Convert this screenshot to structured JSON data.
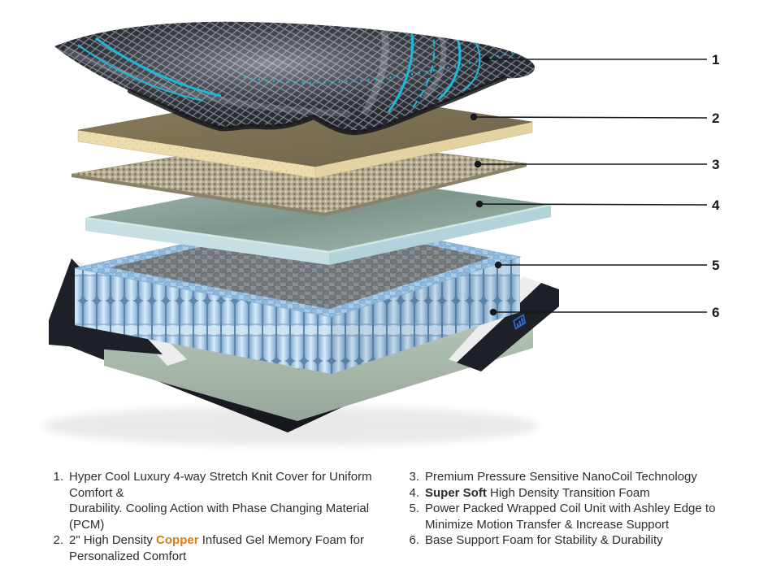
{
  "callouts": [
    {
      "label": "1",
      "target": "knit-cover"
    },
    {
      "label": "2",
      "target": "memory-foam"
    },
    {
      "label": "3",
      "target": "nanocoil-layer"
    },
    {
      "label": "4",
      "target": "transition-foam"
    },
    {
      "label": "5",
      "target": "wrapped-coil-unit"
    },
    {
      "label": "6",
      "target": "base-support-foam"
    }
  ],
  "legend": {
    "columns": [
      {
        "side": "left",
        "items": [
          {
            "num": "1.",
            "segments": [
              {
                "text": "Hyper Cool Luxury 4-way Stretch Knit Cover for Uniform Comfort &\nDurability. Cooling Action with Phase Changing Material (PCM)"
              }
            ]
          },
          {
            "num": "2.",
            "segments": [
              {
                "text": "2\" High Density "
              },
              {
                "text": "Copper",
                "style": "orange"
              },
              {
                "text": " Infused Gel Memory Foam for\nPersonalized Comfort"
              }
            ]
          }
        ]
      },
      {
        "side": "right",
        "items": [
          {
            "num": "3.",
            "segments": [
              {
                "text": "Premium Pressure Sensitive NanoCoil Technology"
              }
            ]
          },
          {
            "num": "4.",
            "segments": [
              {
                "text": "Super Soft",
                "style": "bold"
              },
              {
                "text": " High Density Transition Foam"
              }
            ]
          },
          {
            "num": "5.",
            "segments": [
              {
                "text": "Power Packed Wrapped Coil Unit with Ashley Edge to\nMinimize Motion Transfer & Increase Support"
              }
            ]
          },
          {
            "num": "6.",
            "segments": [
              {
                "text": "Base Support Foam for Stability & Durability"
              }
            ]
          }
        ]
      }
    ]
  },
  "palette": {
    "cover-dark": "#24282e",
    "cover-lattice": "#848c96",
    "accent-cyan": "#1cb8dd",
    "band-gray": "#c7cad0",
    "tan-top-a": "#8a7d5c",
    "tan-top-b": "#6e644c",
    "tan-edge": "#ecdcae",
    "tan-edge-side": "#e3d2a2",
    "mesh-base": "#b2a98f",
    "mesh-hi": "#d6cfb8",
    "mesh-lo": "#7e7763",
    "bluefoam-top-a": "#a3bab0",
    "bluefoam-top-b": "#7e968d",
    "bluefoam-edge": "#c6dfe3",
    "bluefoam-edge2": "#b2d3d9",
    "coil-blue-bg": "#a8cce9",
    "coil-blue-dot": "#8fb9dc",
    "coil-gray-bg": "#898e92",
    "coil-gray-dot": "#73787d",
    "coil-gap": "#5f87ad",
    "coil-hi": "#d8ecf9",
    "coil-mid": "#85aed2",
    "base-black-a": "#2a2f37",
    "base-black-b": "#14161b",
    "trim-white": "#ededed",
    "green-top-a": "#bad4bc",
    "green-top-b": "#9cbaa3",
    "green-front-a": "#c6d7c7",
    "green-front-b": "#96a69a",
    "green-hi": "#e4f0e4",
    "logo-blue": "#2e6fe2",
    "line-black": "#17181a",
    "text-dark": "#2d2d2d",
    "copper": "#e07b1a"
  }
}
